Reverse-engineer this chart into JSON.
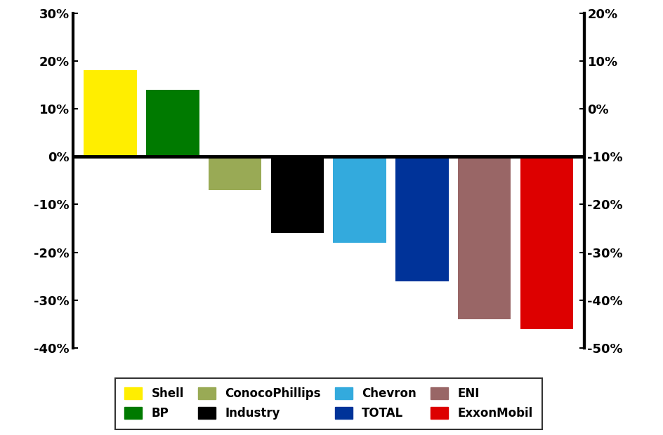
{
  "categories": [
    "Shell",
    "BP",
    "ConocoPhillips",
    "Industry",
    "Chevron",
    "TOTAL",
    "ENI",
    "ExxonMobil"
  ],
  "values": [
    18,
    14,
    -7,
    -16,
    -18,
    -26,
    -34,
    -36
  ],
  "colors": [
    "#FFEE00",
    "#007A00",
    "#99AA55",
    "#000000",
    "#33AADD",
    "#003399",
    "#996666",
    "#DD0000"
  ],
  "left_ylim": [
    -40,
    30
  ],
  "right_ylim": [
    -50,
    20
  ],
  "left_yticks": [
    -40,
    -30,
    -20,
    -10,
    0,
    10,
    20,
    30
  ],
  "right_yticks": [
    -50,
    -40,
    -30,
    -20,
    -10,
    0,
    10,
    20
  ],
  "left_yticklabels": [
    "-40%",
    "-30%",
    "-20%",
    "-10%",
    "0%",
    "10%",
    "20%",
    "30%"
  ],
  "right_yticklabels": [
    "-50%",
    "-40%",
    "-30%",
    "-20%",
    "-10%",
    "0%",
    "10%",
    "20%"
  ],
  "legend_row1": [
    {
      "label": "Shell",
      "color": "#FFEE00"
    },
    {
      "label": "BP",
      "color": "#007A00"
    },
    {
      "label": "ConocoPhillips",
      "color": "#99AA55"
    },
    {
      "label": "Industry",
      "color": "#000000"
    }
  ],
  "legend_row2": [
    {
      "label": "Chevron",
      "color": "#33AADD"
    },
    {
      "label": "TOTAL",
      "color": "#003399"
    },
    {
      "label": "ENI",
      "color": "#996666"
    },
    {
      "label": "ExxonMobil",
      "color": "#DD0000"
    }
  ],
  "bar_width": 0.85,
  "spine_linewidth": 3.0,
  "figsize": [
    9.45,
    6.2
  ],
  "dpi": 100
}
